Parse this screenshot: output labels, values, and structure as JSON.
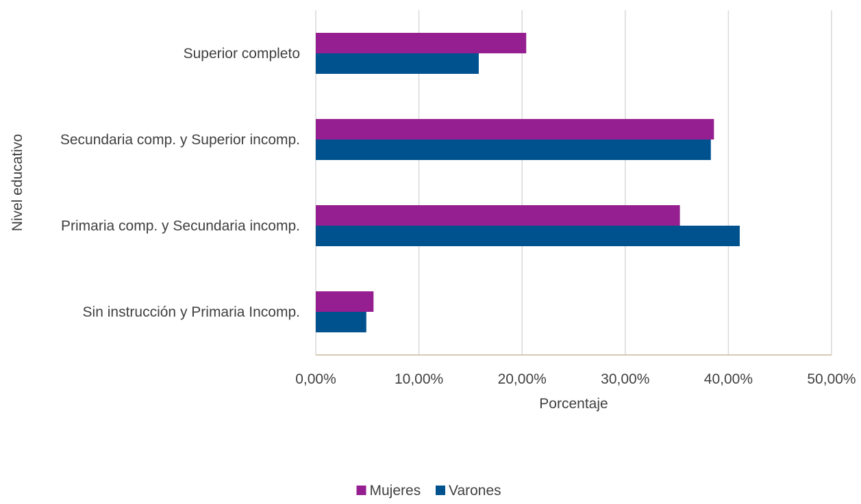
{
  "chart_data": {
    "type": "bar",
    "orientation": "horizontal",
    "categories": [
      "Superior completo",
      "Secundaria comp. y Superior incomp.",
      "Primaria comp. y Secundaria incomp.",
      "Sin instrucción y Primaria Incomp."
    ],
    "series": [
      {
        "name": "Mujeres",
        "color": "#951f90",
        "values": [
          20.4,
          38.6,
          35.3,
          5.6
        ]
      },
      {
        "name": "Varones",
        "color": "#00528f",
        "values": [
          15.8,
          38.3,
          41.1,
          4.9
        ]
      }
    ],
    "xlabel": "Porcentaje",
    "ylabel": "Nivel educativo",
    "xlim": [
      0,
      50
    ],
    "xticks": [
      "0,00%",
      "10,00%",
      "20,00%",
      "30,00%",
      "40,00%",
      "50,00%"
    ],
    "grid": true,
    "legend_position": "bottom"
  }
}
